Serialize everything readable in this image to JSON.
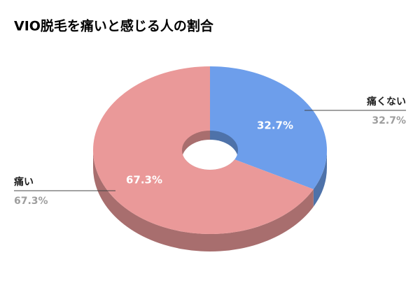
{
  "chart_data": {
    "type": "pie",
    "title": "VIO脱毛を痛いと感じる人の割合",
    "categories": [
      "痛くない",
      "痛い"
    ],
    "values": [
      32.7,
      67.3
    ],
    "value_labels": [
      "32.7%",
      "67.3%"
    ],
    "colors": [
      "#6d9eeb",
      "#ea9999"
    ]
  }
}
